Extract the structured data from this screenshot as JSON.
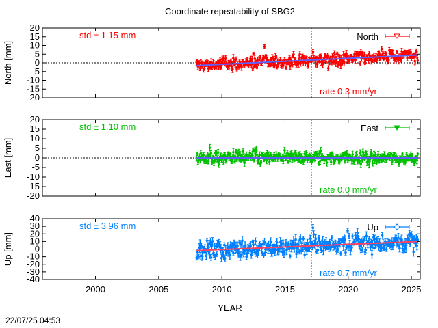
{
  "figure": {
    "title": "Coordinate repeatability of SBG2",
    "xlabel": "YEAR",
    "timestamp": "22/07/25 04:53"
  },
  "colors": {
    "north": "#ff0000",
    "east": "#00c000",
    "up": "#0080ff",
    "trend": "#6060ff",
    "up_trend": "#ff4060"
  },
  "chart_data": [
    {
      "type": "scatter",
      "component": "North",
      "ylabel": "North [mm]",
      "legend": "North",
      "legend_position": "top-right",
      "std_label": "std ± 1.15 mm",
      "rate_label": "rate  0.3 mm/yr",
      "xlim": [
        1995.8,
        2025.7
      ],
      "ylim": [
        -20,
        20
      ],
      "xticks": [
        2000,
        2005,
        2010,
        2015,
        2020,
        2025
      ],
      "yticks": [
        -20,
        -15,
        -10,
        -5,
        0,
        5,
        10,
        15,
        20
      ],
      "reference_vline": 2017.1,
      "data_span": [
        2008.0,
        2025.5
      ],
      "trend": {
        "x": [
          2008.0,
          2025.5
        ],
        "y": [
          -1.5,
          4.5
        ]
      },
      "scatter_spread_mm": 2.5,
      "error_bar_mm": 1.5
    },
    {
      "type": "scatter",
      "component": "East",
      "ylabel": "East [mm]",
      "legend": "East",
      "legend_position": "top-right",
      "std_label": "std ± 1.10 mm",
      "rate_label": "rate  0.0 mm/yr",
      "xlim": [
        1995.8,
        2025.7
      ],
      "ylim": [
        -20,
        20
      ],
      "xticks": [
        2000,
        2005,
        2010,
        2015,
        2020,
        2025
      ],
      "yticks": [
        -20,
        -15,
        -10,
        -5,
        0,
        5,
        10,
        15,
        20
      ],
      "reference_vline": 2017.1,
      "data_span": [
        2008.0,
        2025.5
      ],
      "trend": {
        "x": [
          2008.0,
          2025.5
        ],
        "y": [
          0.0,
          0.0
        ]
      },
      "scatter_spread_mm": 2.2,
      "error_bar_mm": 1.4
    },
    {
      "type": "scatter",
      "component": "Up",
      "ylabel": "Up [mm]",
      "legend": "Up",
      "legend_position": "top-right",
      "std_label": "std ± 3.96 mm",
      "rate_label": "rate  0.7 mm/yr",
      "xlim": [
        1995.8,
        2025.7
      ],
      "ylim": [
        -40,
        40
      ],
      "xticks": [
        2000,
        2005,
        2010,
        2015,
        2020,
        2025
      ],
      "yticks": [
        -40,
        -30,
        -20,
        -10,
        0,
        10,
        20,
        30,
        40
      ],
      "reference_vline": 2017.1,
      "data_span": [
        2008.0,
        2025.5
      ],
      "trend": {
        "x": [
          2008.0,
          2025.5
        ],
        "y": [
          -2.0,
          10.0
        ]
      },
      "scatter_spread_mm": 8.0,
      "error_bar_mm": 4.5
    }
  ]
}
